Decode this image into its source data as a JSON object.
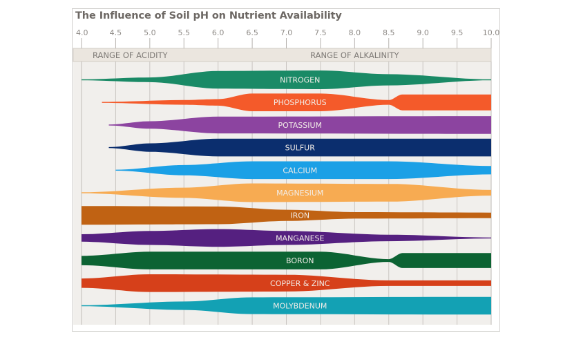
{
  "chart_data": {
    "type": "area",
    "title": "The Influence of Soil pH on Nutrient Availability",
    "xlabel": "",
    "ylabel": "",
    "xlim": [
      4.0,
      10.0
    ],
    "x_ticks": [
      "4.0",
      "4.5",
      "5.0",
      "5.5",
      "6.0",
      "6.5",
      "7.0",
      "7.5",
      "8.0",
      "8.5",
      "9.0",
      "9.5",
      "10.0"
    ],
    "grid": true,
    "ranges": [
      {
        "label": "RANGE OF ACIDITY",
        "from": 4.0,
        "to": 7.0
      },
      {
        "label": "RANGE OF ALKALINITY",
        "from": 7.0,
        "to": 10.0
      }
    ],
    "series": [
      {
        "name": "NITROGEN",
        "color": "#1a8a66",
        "profile": [
          [
            4.0,
            0.05
          ],
          [
            5.0,
            0.25
          ],
          [
            6.0,
            0.95
          ],
          [
            7.5,
            1.0
          ],
          [
            8.5,
            0.6
          ],
          [
            10.0,
            0.05
          ]
        ]
      },
      {
        "name": "PHOSPHORUS",
        "color": "#f45a2a",
        "profile": [
          [
            4.3,
            0.05
          ],
          [
            5.5,
            0.25
          ],
          [
            6.0,
            0.35
          ],
          [
            6.5,
            0.95
          ],
          [
            7.5,
            0.95
          ],
          [
            8.5,
            0.25
          ],
          [
            8.7,
            0.85
          ],
          [
            10.0,
            0.85
          ]
        ]
      },
      {
        "name": "POTASSIUM",
        "color": "#8c44a0",
        "profile": [
          [
            4.4,
            0.05
          ],
          [
            5.0,
            0.4
          ],
          [
            6.0,
            0.9
          ],
          [
            10.0,
            0.95
          ]
        ]
      },
      {
        "name": "SULFUR",
        "color": "#0b2e6e",
        "profile": [
          [
            4.4,
            0.05
          ],
          [
            5.0,
            0.45
          ],
          [
            6.0,
            0.95
          ],
          [
            10.0,
            0.95
          ]
        ]
      },
      {
        "name": "CALCIUM",
        "color": "#1ba0e6",
        "profile": [
          [
            4.5,
            0.05
          ],
          [
            5.5,
            0.55
          ],
          [
            6.5,
            0.95
          ],
          [
            8.5,
            0.95
          ],
          [
            10.0,
            0.45
          ]
        ]
      },
      {
        "name": "MAGNESIUM",
        "color": "#f7ab52",
        "profile": [
          [
            4.0,
            0.05
          ],
          [
            5.5,
            0.55
          ],
          [
            6.5,
            1.0
          ],
          [
            8.5,
            0.95
          ],
          [
            10.0,
            0.3
          ]
        ]
      },
      {
        "name": "IRON",
        "color": "#c06213",
        "profile": [
          [
            4.0,
            1.0
          ],
          [
            6.0,
            0.95
          ],
          [
            7.0,
            0.6
          ],
          [
            8.0,
            0.35
          ],
          [
            10.0,
            0.3
          ]
        ]
      },
      {
        "name": "MANGANESE",
        "color": "#552080",
        "profile": [
          [
            4.0,
            0.4
          ],
          [
            5.0,
            0.75
          ],
          [
            6.0,
            0.95
          ],
          [
            7.0,
            0.75
          ],
          [
            8.5,
            0.35
          ],
          [
            10.0,
            0.05
          ]
        ]
      },
      {
        "name": "BORON",
        "color": "#0c6333",
        "profile": [
          [
            4.0,
            0.5
          ],
          [
            5.0,
            0.95
          ],
          [
            7.5,
            0.95
          ],
          [
            8.5,
            0.15
          ],
          [
            8.7,
            0.8
          ],
          [
            10.0,
            0.8
          ]
        ]
      },
      {
        "name": "COPPER & ZINC",
        "color": "#d6401a",
        "profile": [
          [
            4.0,
            0.5
          ],
          [
            5.0,
            0.95
          ],
          [
            7.0,
            0.9
          ],
          [
            8.5,
            0.3
          ],
          [
            10.0,
            0.3
          ]
        ]
      },
      {
        "name": "MOLYBDENUM",
        "color": "#13a1b4",
        "profile": [
          [
            4.0,
            0.05
          ],
          [
            5.5,
            0.45
          ],
          [
            6.5,
            0.9
          ],
          [
            10.0,
            0.95
          ]
        ]
      }
    ]
  }
}
